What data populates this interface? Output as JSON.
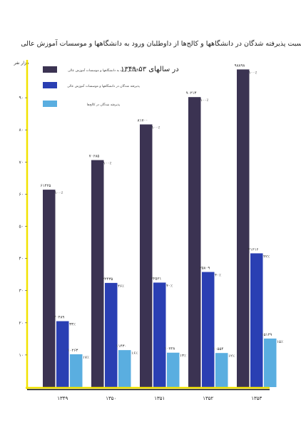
{
  "chart_data": {
    "type": "bar",
    "title": "نسبت پذیرفته شدگان در دانشگاهها و کالج‌ها از داوطلبان ورود به دانشگاهها و موسسات آموزش عالی",
    "subtitle": "در سالهای ۵۳-۱۳۴۹",
    "ylabel": "هزار نفر",
    "categories": [
      "۱۳۴۹",
      "۱۳۵۰",
      "۱۳۵۱",
      "۱۳۵۲",
      "۱۳۵۳"
    ],
    "ylim": [
      0,
      100
    ],
    "yticks": [
      10,
      20,
      30,
      40,
      50,
      60,
      70,
      80,
      90
    ],
    "ytick_labels": [
      "۱۰",
      "۲۰",
      "۳۰",
      "۴۰",
      "۵۰",
      "۶۰",
      "۷۰",
      "۸۰",
      "۹۰"
    ],
    "series": [
      {
        "name": "داوطلبان ورود به دانشگاهها و موسسات آموزش عالی",
        "color": "#3b3352",
        "values": [
          61.4,
          70.6,
          81.7,
          90.2,
          98.8
        ],
        "value_labels": [
          "۶۱۴۲۵",
          "۷۰۶۸۵",
          "۸۱۷۰۰",
          "۹۰۲۱۳",
          "۹۸۸۹۸"
        ],
        "pct_labels": [
          "۱۰۰٪",
          "۱۰۰٪",
          "۱۰۰٪",
          "۱۰۰٪",
          "۱۰۰٪"
        ]
      },
      {
        "name": "پذیرفته شدگان در دانشگاهها و موسسات آموزش عالی",
        "color": "#2a3fb3",
        "values": [
          20.5,
          32.4,
          32.5,
          35.8,
          41.6
        ],
        "value_labels": [
          "۲۰۴۸۹",
          "۳۲۴۳۵",
          "۳۲۵۲۱",
          "۳۵۸۰۹",
          "۴۱۶۱۶"
        ],
        "pct_labels": [
          "۳۳٪",
          "۴۶٪",
          "۴۰٪",
          "۴۰٪",
          "۴۲٪"
        ]
      },
      {
        "name": "پذیرفته شدگان در کالج‌ها",
        "color": "#5aaee0",
        "values": [
          10.2,
          11.5,
          10.7,
          10.6,
          15.1
        ],
        "value_labels": [
          "۱۰۲۶۳",
          "۱۱۴۳۰",
          "۱۰۷۲۸",
          "۱۰۵۵۴",
          "۱۵۱۲۹"
        ],
        "pct_labels": [
          "۱۷٪",
          "۱۶٪",
          "۱۳٪",
          "۱۲٪",
          "۱۵٪"
        ]
      }
    ],
    "legend_position": "top-left",
    "grid": false,
    "axis_color": "#f2e300"
  }
}
